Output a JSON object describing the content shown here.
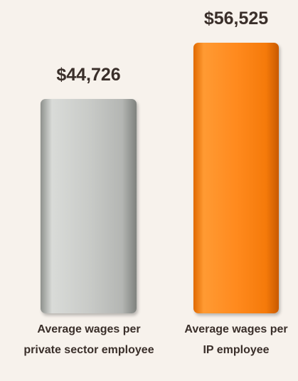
{
  "chart_data": {
    "type": "bar",
    "categories": [
      "Average wages per private sector employee",
      "Average wages per IP employee"
    ],
    "values": [
      44726,
      56525
    ],
    "value_labels": [
      "$44,726",
      "$56,525"
    ],
    "colors": [
      "#c4c6c3",
      "#ff8a1e"
    ]
  }
}
